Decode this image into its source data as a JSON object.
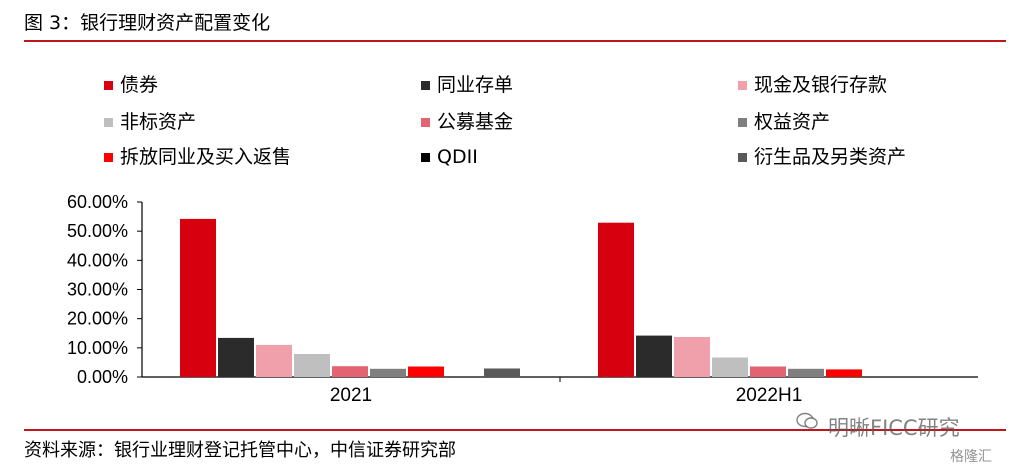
{
  "figure": {
    "title": "图 3：银行理财资产配置变化",
    "source": "资料来源：银行业理财登记托管中心，中信证券研究部",
    "watermark": "明晰FICC研究",
    "watermark_brand": "格隆汇"
  },
  "chart_data": {
    "type": "bar",
    "categories": [
      "2021",
      "2022H1"
    ],
    "series": [
      {
        "name": "债券",
        "color": "#d7000f",
        "values": [
          54.2,
          52.9
        ]
      },
      {
        "name": "同业存单",
        "color": "#2b2b2b",
        "values": [
          13.4,
          14.2
        ]
      },
      {
        "name": "现金及银行存款",
        "color": "#f0a0aa",
        "values": [
          11.0,
          13.7
        ]
      },
      {
        "name": "非标资产",
        "color": "#bfbfbf",
        "values": [
          7.9,
          6.7
        ]
      },
      {
        "name": "公募基金",
        "color": "#e36372",
        "values": [
          3.7,
          3.6
        ]
      },
      {
        "name": "权益资产",
        "color": "#7f7f7f",
        "values": [
          2.8,
          2.8
        ]
      },
      {
        "name": "拆放同业及买入返售",
        "color": "#ff0000",
        "values": [
          3.6,
          2.6
        ]
      },
      {
        "name": "QDII",
        "color": "#000000",
        "values": [
          0.1,
          0.1
        ]
      },
      {
        "name": "衍生品及另类资产",
        "color": "#595959",
        "values": [
          2.9,
          0.0
        ]
      }
    ],
    "ylim": [
      0,
      60
    ],
    "yticks": [
      "0.00%",
      "10.00%",
      "20.00%",
      "30.00%",
      "40.00%",
      "50.00%",
      "60.00%"
    ],
    "legend_position": "top",
    "grid": false
  }
}
